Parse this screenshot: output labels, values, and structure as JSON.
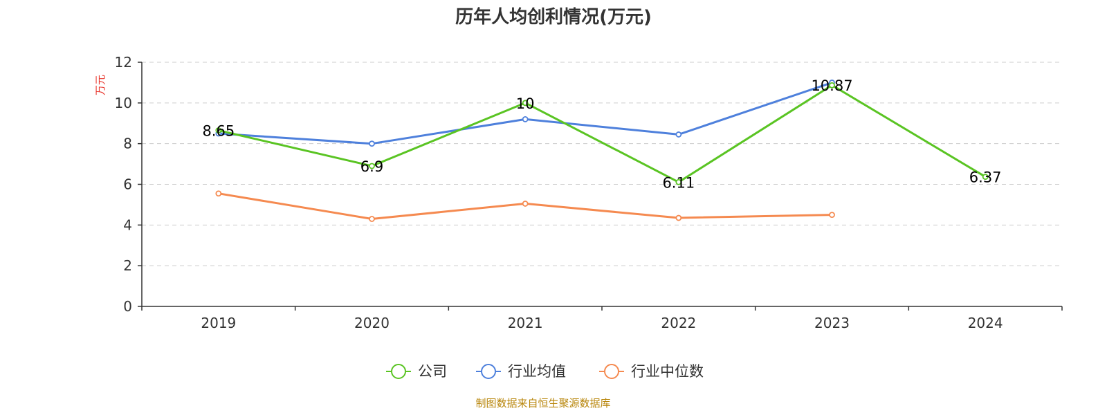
{
  "title": "历年人均创利情况(万元)",
  "ylabel": "万元",
  "footer": "制图数据来自恒生聚源数据库",
  "chart_data": {
    "type": "line",
    "title": "历年人均创利情况(万元)",
    "ylabel": "万元",
    "xlabel": "",
    "categories": [
      "2019",
      "2020",
      "2021",
      "2022",
      "2023",
      "2024"
    ],
    "ylim": [
      0,
      12
    ],
    "yticks": [
      0,
      2,
      4,
      6,
      8,
      10,
      12
    ],
    "grid": true,
    "legend_position": "bottom",
    "series": [
      {
        "name": "公司",
        "color": "#5ac423",
        "values": [
          8.65,
          6.9,
          10,
          6.11,
          10.87,
          6.37
        ],
        "data_labels": [
          "8.65",
          "6.9",
          "10",
          "6.11",
          "10.87",
          "6.37"
        ]
      },
      {
        "name": "行业均值",
        "color": "#4e80dc",
        "values": [
          8.5,
          8.0,
          9.2,
          8.45,
          11.0,
          null
        ]
      },
      {
        "name": "行业中位数",
        "color": "#f58a50",
        "values": [
          5.55,
          4.3,
          5.05,
          4.35,
          4.5,
          null
        ]
      }
    ]
  }
}
